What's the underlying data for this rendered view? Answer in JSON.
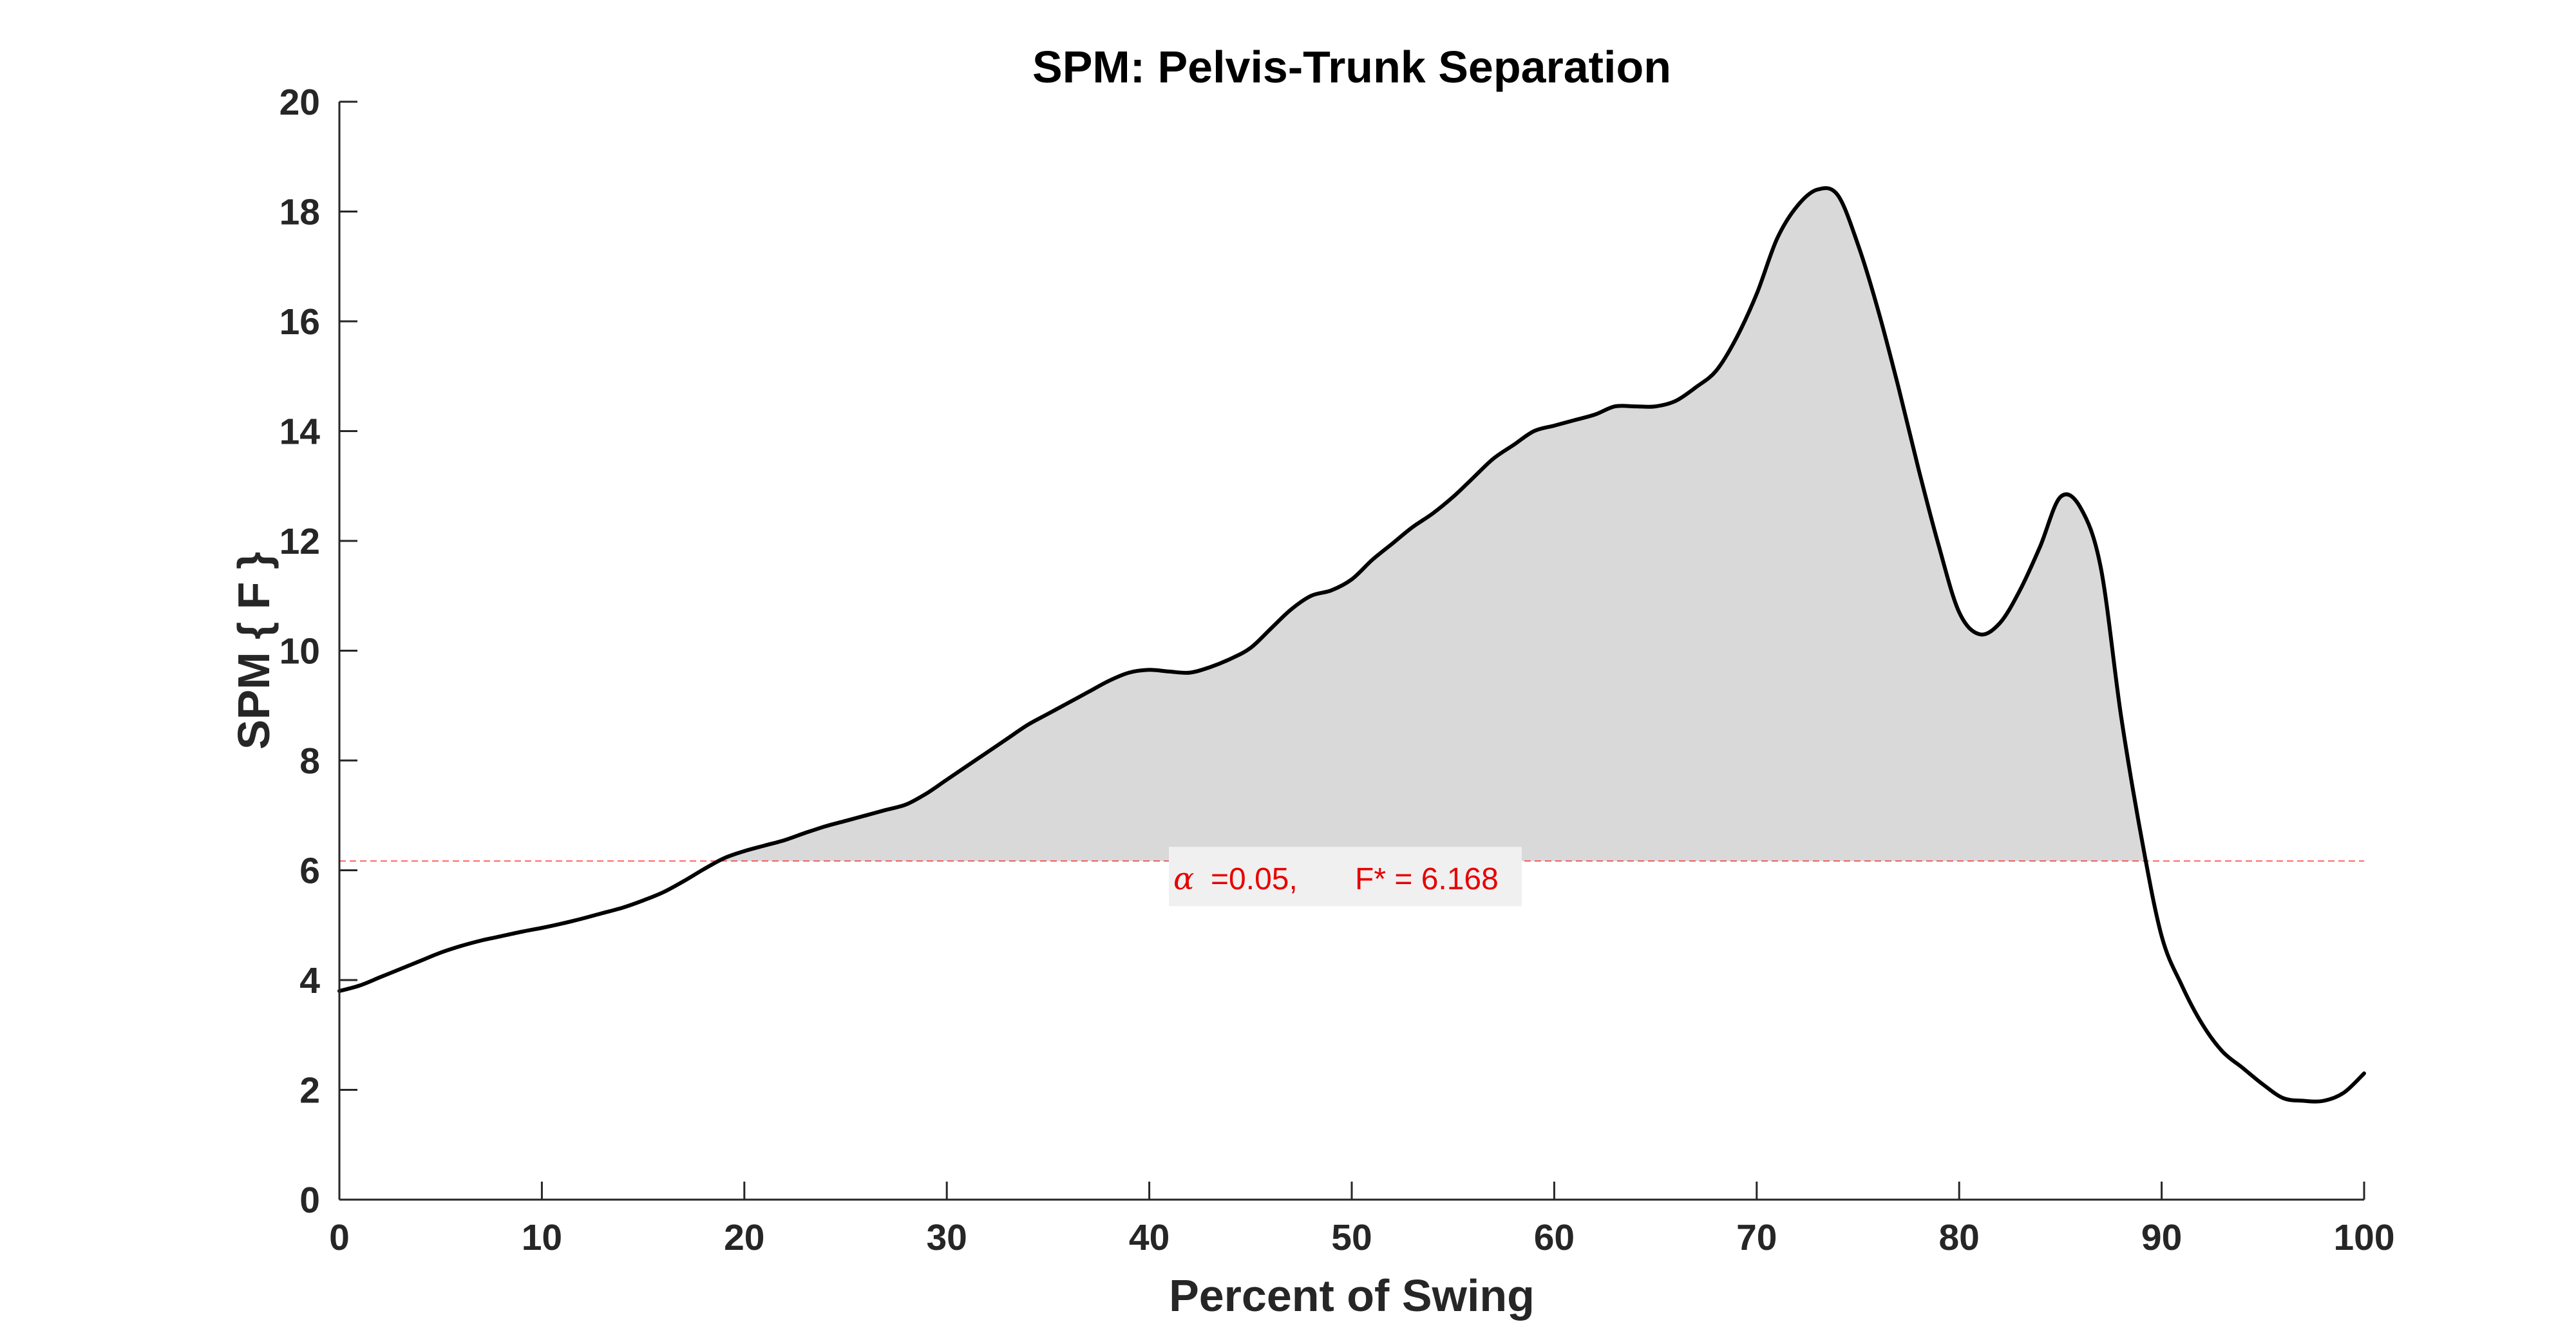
{
  "chart_data": {
    "type": "area",
    "title": "SPM: Pelvis-Trunk Separation",
    "xlabel": "Percent of Swing",
    "ylabel": "SPM { F }",
    "xlim": [
      0,
      100
    ],
    "ylim": [
      0,
      20
    ],
    "xticks": [
      0,
      10,
      20,
      30,
      40,
      50,
      60,
      70,
      80,
      90,
      100
    ],
    "yticks": [
      0,
      2,
      4,
      6,
      8,
      10,
      12,
      14,
      16,
      18,
      20
    ],
    "threshold": {
      "value": 6.168,
      "alpha_symbol": "α",
      "alpha_text": "=0.05,",
      "fstar_text": "F* = 6.168",
      "color": "#ff0000",
      "style": "dashed"
    },
    "fill_color": "#d9d9d9",
    "line_color": "#000000",
    "grid": false,
    "series": [
      {
        "x": [
          0,
          1,
          2,
          3,
          4,
          5,
          6,
          7,
          8,
          9,
          10,
          11,
          12,
          13,
          14,
          15,
          16,
          17,
          18,
          19,
          20,
          21,
          22,
          23,
          24,
          25,
          26,
          27,
          28,
          29,
          30,
          31,
          32,
          33,
          34,
          35,
          36,
          37,
          38,
          39,
          40,
          41,
          42,
          43,
          44,
          45,
          46,
          47,
          48,
          49,
          50,
          51,
          52,
          53,
          54,
          55,
          56,
          57,
          58,
          59,
          60,
          61,
          62,
          63,
          64,
          65,
          66,
          67,
          68,
          69,
          70,
          71,
          72,
          73,
          74,
          75,
          76,
          77,
          78,
          79,
          80,
          81,
          82,
          83,
          84,
          85,
          86,
          87,
          88,
          89,
          90,
          91,
          92,
          93,
          94,
          95,
          96,
          97,
          98,
          99,
          100
        ],
        "y": [
          3.8,
          3.9,
          4.05,
          4.2,
          4.35,
          4.5,
          4.62,
          4.72,
          4.8,
          4.88,
          4.95,
          5.03,
          5.12,
          5.22,
          5.32,
          5.45,
          5.6,
          5.8,
          6.02,
          6.22,
          6.35,
          6.45,
          6.55,
          6.68,
          6.8,
          6.9,
          7.0,
          7.1,
          7.2,
          7.4,
          7.65,
          7.9,
          8.15,
          8.4,
          8.65,
          8.85,
          9.05,
          9.25,
          9.45,
          9.6,
          9.65,
          9.62,
          9.6,
          9.7,
          9.85,
          10.05,
          10.4,
          10.75,
          11.0,
          11.1,
          11.3,
          11.65,
          11.95,
          12.25,
          12.5,
          12.8,
          13.15,
          13.5,
          13.75,
          14.0,
          14.1,
          14.2,
          14.3,
          14.45,
          14.45,
          14.45,
          14.55,
          14.8,
          15.1,
          15.7,
          16.5,
          17.5,
          18.1,
          18.4,
          18.3,
          17.4,
          16.2,
          14.8,
          13.3,
          11.9,
          10.7,
          10.3,
          10.5,
          11.1,
          11.9,
          12.8,
          12.6,
          11.5,
          8.8,
          6.6,
          4.8,
          3.9,
          3.2,
          2.7,
          2.4,
          2.1,
          1.85,
          1.8,
          1.8,
          1.95,
          2.3
        ]
      }
    ]
  }
}
